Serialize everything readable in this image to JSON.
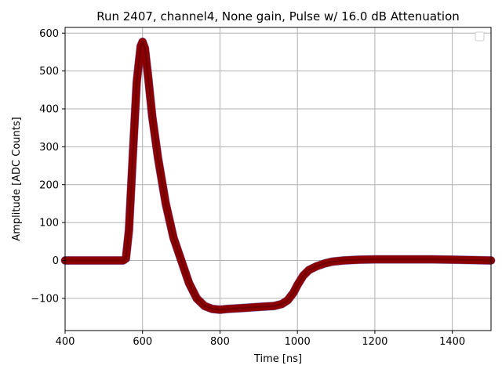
{
  "chart_data": {
    "type": "line",
    "title": "Run 2407, channel4, None gain, Pulse w/ 16.0 dB Attenuation",
    "xlabel": "Time [ns]",
    "ylabel": "Amplitude [ADC Counts]",
    "xlim": [
      400,
      1500
    ],
    "ylim": [
      -185,
      615
    ],
    "xticks": [
      400,
      600,
      800,
      1000,
      1200,
      1400
    ],
    "yticks": [
      -100,
      0,
      100,
      200,
      300,
      400,
      500,
      600
    ],
    "grid": true,
    "legend": "top-right",
    "colors": {
      "trace": "#8b0000",
      "noise": "#2b2bb0",
      "grid": "#b0b0b0"
    },
    "series": [
      {
        "x": [
          400,
          450,
          500,
          550,
          557,
          565,
          575,
          585,
          595,
          600,
          606,
          615,
          625,
          640,
          660,
          680,
          700,
          720,
          740,
          760,
          780,
          800,
          820,
          850,
          880,
          910,
          940,
          960,
          975,
          990,
          1000,
          1015,
          1030,
          1050,
          1070,
          1090,
          1120,
          1160,
          1200,
          1250,
          1300,
          1350,
          1400,
          1450,
          1500
        ],
        "values": [
          0,
          0,
          0,
          0,
          5,
          80,
          280,
          470,
          565,
          577,
          560,
          480,
          380,
          270,
          150,
          60,
          0,
          -60,
          -100,
          -120,
          -128,
          -130,
          -128,
          -126,
          -124,
          -122,
          -120,
          -115,
          -105,
          -85,
          -65,
          -40,
          -25,
          -15,
          -8,
          -3,
          0,
          2,
          3,
          3,
          3,
          3,
          2,
          1,
          0
        ]
      }
    ]
  }
}
